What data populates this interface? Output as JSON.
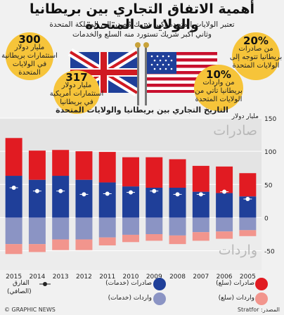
{
  "header": {
    "title": "أهمية الاتفاق التجاري بين بريطانيا والولايات المتحدة",
    "subtitle_line1": "تعتبر الولايات المتحدة أكبر شريك مُصدر إلى المملكة المتحدة",
    "subtitle_line2": "وثاني أكبر شريك تستورد منه السلع والخدمات"
  },
  "stats": {
    "top_left": {
      "value": "300",
      "unit": "مليار دولار",
      "line1": "استثمارات بريطانية",
      "line2": "في الولايات",
      "line3": "المتحدة"
    },
    "mid_left": {
      "value": "317",
      "unit": "مليار دولار",
      "line1": "استثمارات أمريكية",
      "line2": "في بريطانيا"
    },
    "top_right": {
      "value": "20%",
      "line1": "من صادرات",
      "line2": "بريطانيا تتوجه إلى",
      "line3": "الولايات المتحدة"
    },
    "mid_right": {
      "value": "10%",
      "line1": "من واردات",
      "line2": "بريطانيا تأتي من",
      "line3": "الولايات المتحدة"
    }
  },
  "colors": {
    "goods_export": "#e11b22",
    "services_export": "#1f3f99",
    "services_import": "#8b94c4",
    "goods_import": "#f2958d",
    "bubble": "#f6c43a"
  },
  "chart_data": {
    "type": "bar",
    "title": "التاريخ التجاري بين بريطانيا والولايات المتحدة",
    "unit_label": "مليار دولار",
    "upper_label": "صادرات",
    "lower_label": "واردات",
    "categories": [
      "2015",
      "2014",
      "2013",
      "2012",
      "2011",
      "2010",
      "2009",
      "2008",
      "2007",
      "2006",
      "2005"
    ],
    "y_ticks": [
      150,
      100,
      50,
      0,
      -50
    ],
    "ylim": [
      -60,
      150
    ],
    "series": [
      {
        "name": "صادرات (خدمات)",
        "values": [
          63,
          57,
          63,
          57,
          53,
          47,
          45,
          45,
          39,
          37,
          32
        ]
      },
      {
        "name": "صادرات (سلع)",
        "values": [
          57,
          44,
          39,
          43,
          46,
          44,
          46,
          43,
          39,
          40,
          35
        ]
      },
      {
        "name": "واردات (خدمات)",
        "values": [
          -40,
          -40,
          -33,
          -33,
          -30,
          -26,
          -25,
          -27,
          -22,
          -21,
          -19
        ]
      },
      {
        "name": "واردات (سلع)",
        "values": [
          -55,
          -52,
          -49,
          -49,
          -42,
          -37,
          -35,
          -40,
          -35,
          -32,
          -28
        ]
      },
      {
        "name": "الفارق (الصافي)",
        "values": [
          45,
          40,
          40,
          35,
          36,
          38,
          40,
          35,
          35,
          39,
          28
        ]
      }
    ]
  },
  "legend": {
    "goods_export": "صادرات (سلع)",
    "services_export": "صادرات (خدمات)",
    "net": "الفارق",
    "net2": "(الصافي)",
    "goods_import": "واردات (سلع)",
    "services_import": "واردات (خدمات)"
  },
  "footer": {
    "brand": "© GRAPHIC NEWS",
    "source": "المصدر: Stratfor"
  }
}
